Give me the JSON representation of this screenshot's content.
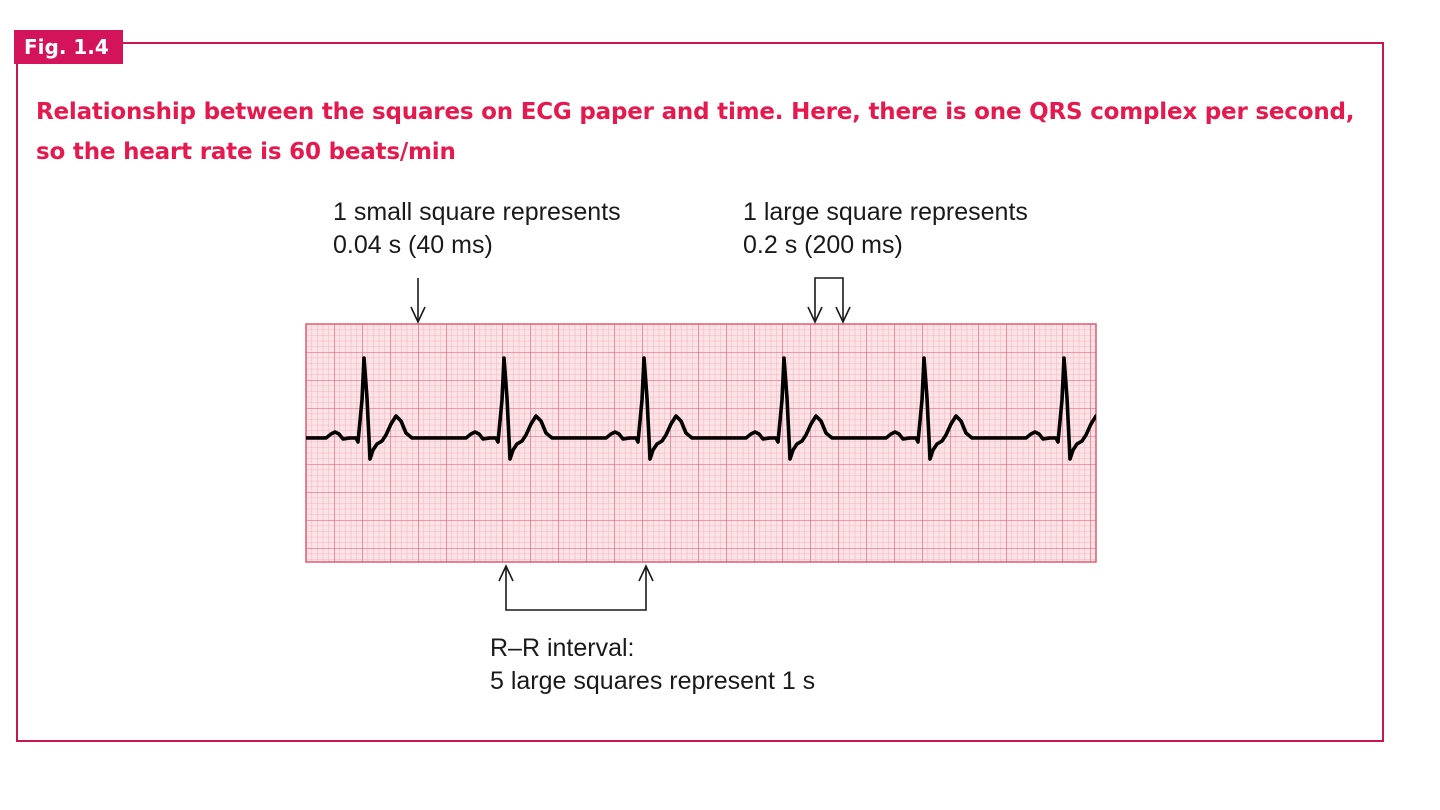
{
  "figure": {
    "label": "Fig. 1.4",
    "caption": "Relationship between the squares on ECG paper and time. Here, there is one QRS complex per second, so the heart rate is 60 beats/min"
  },
  "annotations": {
    "small_square": {
      "line1": "1 small square represents",
      "line2": "0.04 s (40 ms)"
    },
    "large_square": {
      "line1": "1 large square represents",
      "line2": "0.2 s (200 ms)"
    },
    "rr_interval": {
      "line1": "R–R interval:",
      "line2": "5 large squares represent 1 s"
    }
  },
  "colors": {
    "frame": "#c8164f",
    "caption": "#e5194e",
    "label_bg": "#d4145a",
    "grid_bg": "#fbe3e6",
    "grid_minor": "#f3a6b2",
    "grid_major": "#e3506a",
    "trace": "#000000"
  }
}
